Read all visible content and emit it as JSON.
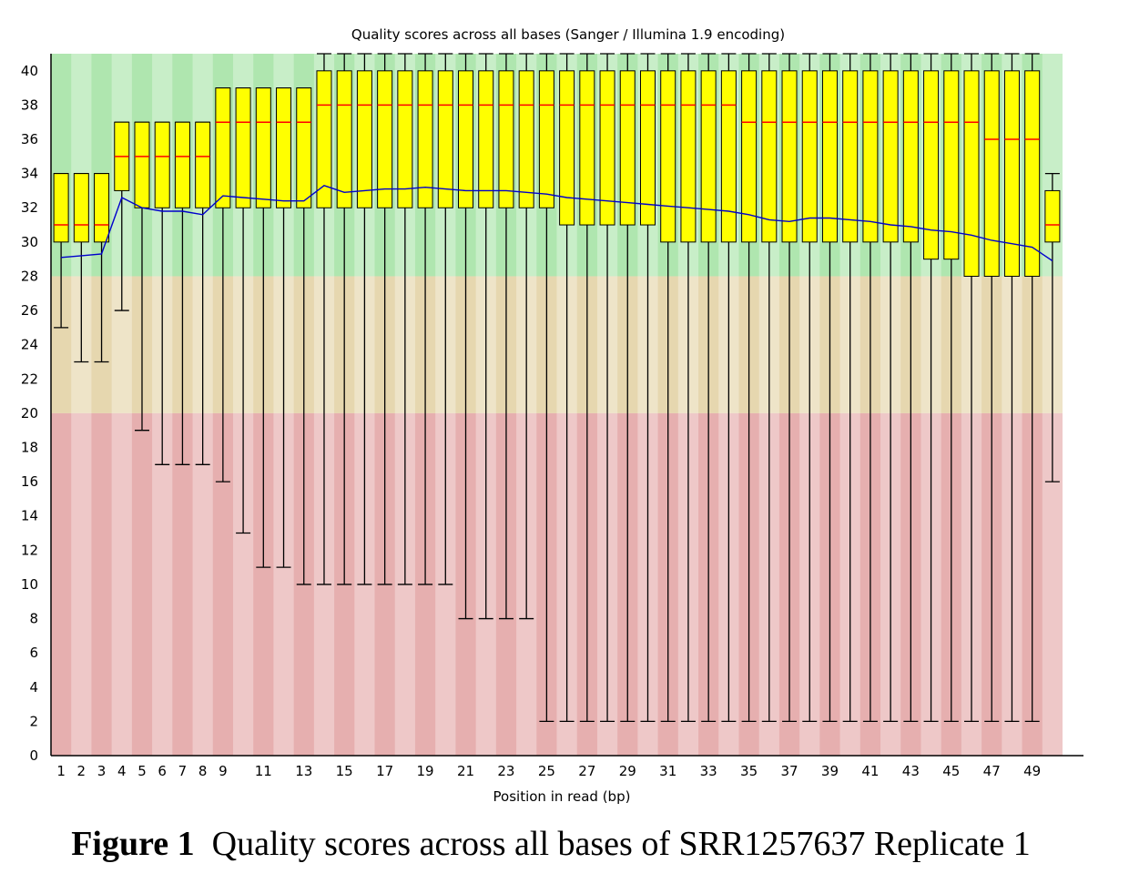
{
  "caption": {
    "label": "Figure 1",
    "text": "Quality scores across all bases of SRR1257637 Replicate 1"
  },
  "chart_data": {
    "type": "boxplot",
    "title": "Quality scores across all bases (Sanger / Illumina 1.9 encoding)",
    "xlabel": "Position in read (bp)",
    "ylabel": "",
    "ylim": [
      0,
      41
    ],
    "y_ticks": [
      "0",
      "2",
      "4",
      "6",
      "8",
      "10",
      "12",
      "14",
      "16",
      "18",
      "20",
      "22",
      "24",
      "26",
      "28",
      "30",
      "32",
      "34",
      "36",
      "38",
      "40"
    ],
    "x_tick_labels": [
      "1",
      "2",
      "3",
      "4",
      "5",
      "6",
      "7",
      "8",
      "9",
      "11",
      "13",
      "15",
      "17",
      "19",
      "21",
      "23",
      "25",
      "27",
      "29",
      "31",
      "33",
      "35",
      "37",
      "39",
      "41",
      "43",
      "45",
      "47",
      "49"
    ],
    "x_tick_positions": [
      1,
      2,
      3,
      4,
      5,
      6,
      7,
      8,
      9,
      11,
      13,
      15,
      17,
      19,
      21,
      23,
      25,
      27,
      29,
      31,
      33,
      35,
      37,
      39,
      41,
      43,
      45,
      47,
      49
    ],
    "bands": [
      {
        "name": "good",
        "from": 28,
        "to": 41,
        "color": "#afe6af"
      },
      {
        "name": "reasonable",
        "from": 20,
        "to": 28,
        "color": "#e6d7af"
      },
      {
        "name": "poor",
        "from": 0,
        "to": 20,
        "color": "#e6afaf"
      }
    ],
    "colors": {
      "box": "#ffff00",
      "median": "#ff0000",
      "mean": "#0000cc",
      "whisker": "#000000"
    },
    "positions": [
      1,
      2,
      3,
      4,
      5,
      6,
      7,
      8,
      9,
      10,
      11,
      12,
      13,
      14,
      15,
      16,
      17,
      18,
      19,
      20,
      21,
      22,
      23,
      24,
      25,
      26,
      27,
      28,
      29,
      30,
      31,
      32,
      33,
      34,
      35,
      36,
      37,
      38,
      39,
      40,
      41,
      42,
      43,
      44,
      45,
      46,
      47,
      48,
      49,
      50
    ],
    "whisker_low": [
      25,
      23,
      23,
      26,
      19,
      17,
      17,
      17,
      16,
      13,
      11,
      11,
      10,
      10,
      10,
      10,
      10,
      10,
      10,
      10,
      8,
      8,
      8,
      8,
      2,
      2,
      2,
      2,
      2,
      2,
      2,
      2,
      2,
      2,
      2,
      2,
      2,
      2,
      2,
      2,
      2,
      2,
      2,
      2,
      2,
      2,
      2,
      2,
      2,
      16
    ],
    "q1": [
      30,
      30,
      30,
      33,
      32,
      32,
      32,
      32,
      32,
      32,
      32,
      32,
      32,
      32,
      32,
      32,
      32,
      32,
      32,
      32,
      32,
      32,
      32,
      32,
      32,
      31,
      31,
      31,
      31,
      31,
      30,
      30,
      30,
      30,
      30,
      30,
      30,
      30,
      30,
      30,
      30,
      30,
      30,
      29,
      29,
      28,
      28,
      28,
      28,
      30
    ],
    "median": [
      31,
      31,
      31,
      35,
      35,
      35,
      35,
      35,
      37,
      37,
      37,
      37,
      37,
      38,
      38,
      38,
      38,
      38,
      38,
      38,
      38,
      38,
      38,
      38,
      38,
      38,
      38,
      38,
      38,
      38,
      38,
      38,
      38,
      38,
      37,
      37,
      37,
      37,
      37,
      37,
      37,
      37,
      37,
      37,
      37,
      37,
      36,
      36,
      36,
      31
    ],
    "q3": [
      34,
      34,
      34,
      37,
      37,
      37,
      37,
      37,
      39,
      39,
      39,
      39,
      39,
      40,
      40,
      40,
      40,
      40,
      40,
      40,
      40,
      40,
      40,
      40,
      40,
      40,
      40,
      40,
      40,
      40,
      40,
      40,
      40,
      40,
      40,
      40,
      40,
      40,
      40,
      40,
      40,
      40,
      40,
      40,
      40,
      40,
      40,
      40,
      40,
      33
    ],
    "whisker_high": [
      34,
      34,
      34,
      37,
      37,
      37,
      37,
      37,
      39,
      39,
      39,
      39,
      39,
      41,
      41,
      41,
      41,
      41,
      41,
      41,
      41,
      41,
      41,
      41,
      41,
      41,
      41,
      41,
      41,
      41,
      41,
      41,
      41,
      41,
      41,
      41,
      41,
      41,
      41,
      41,
      41,
      41,
      41,
      41,
      41,
      41,
      41,
      41,
      41,
      34
    ],
    "mean": [
      29.1,
      29.2,
      29.3,
      32.6,
      32.0,
      31.8,
      31.8,
      31.6,
      32.7,
      32.6,
      32.5,
      32.4,
      32.4,
      33.3,
      32.9,
      33.0,
      33.1,
      33.1,
      33.2,
      33.1,
      33.0,
      33.0,
      33.0,
      32.9,
      32.8,
      32.6,
      32.5,
      32.4,
      32.3,
      32.2,
      32.1,
      32.0,
      31.9,
      31.8,
      31.6,
      31.3,
      31.2,
      31.4,
      31.4,
      31.3,
      31.2,
      31.0,
      30.9,
      30.7,
      30.6,
      30.4,
      30.1,
      29.9,
      29.7,
      28.9
    ]
  }
}
